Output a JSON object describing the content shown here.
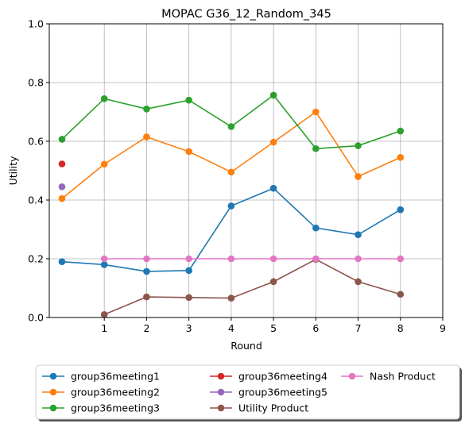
{
  "chart_data": {
    "type": "line",
    "title": "MOPAC G36_12_Random_345",
    "xlabel": "Round",
    "ylabel": "Utility",
    "xlim": [
      -0.3,
      9
    ],
    "ylim": [
      0,
      1.0
    ],
    "x_ticks": [
      1,
      2,
      3,
      4,
      5,
      6,
      7,
      8,
      9
    ],
    "y_ticks": [
      0.0,
      0.2,
      0.4,
      0.6,
      0.8,
      1.0
    ],
    "y_tick_labels": [
      "0.0",
      "0.2",
      "0.4",
      "0.6",
      "0.8",
      "1.0"
    ],
    "grid": true,
    "legend_position": "bottom",
    "legend_columns": 3,
    "series": [
      {
        "name": "group36meeting1",
        "color": "#1f77b4",
        "x": [
          0,
          1,
          2,
          3,
          4,
          5,
          6,
          7,
          8
        ],
        "y": [
          0.19,
          0.18,
          0.157,
          0.16,
          0.38,
          0.44,
          0.305,
          0.282,
          0.367
        ]
      },
      {
        "name": "group36meeting2",
        "color": "#ff7f0e",
        "x": [
          0,
          1,
          2,
          3,
          4,
          5,
          6,
          7,
          8
        ],
        "y": [
          0.405,
          0.522,
          0.615,
          0.565,
          0.495,
          0.597,
          0.7,
          0.48,
          0.545
        ]
      },
      {
        "name": "group36meeting3",
        "color": "#2ca02c",
        "x": [
          0,
          1,
          2,
          3,
          4,
          5,
          6,
          7,
          8
        ],
        "y": [
          0.607,
          0.745,
          0.71,
          0.74,
          0.65,
          0.757,
          0.575,
          0.585,
          0.635
        ]
      },
      {
        "name": "group36meeting4",
        "color": "#d62728",
        "x": [
          0
        ],
        "y": [
          0.523
        ]
      },
      {
        "name": "group36meeting5",
        "color": "#9467bd",
        "x": [
          0
        ],
        "y": [
          0.445
        ]
      },
      {
        "name": "Utility Product",
        "color": "#8c564b",
        "x": [
          1,
          2,
          3,
          4,
          5,
          6,
          7,
          8
        ],
        "y": [
          0.01,
          0.07,
          0.068,
          0.066,
          0.122,
          0.198,
          0.122,
          0.079
        ]
      },
      {
        "name": "Nash Product",
        "color": "#e377c2",
        "x": [
          1,
          2,
          3,
          4,
          5,
          6,
          7,
          8
        ],
        "y": [
          0.2,
          0.2,
          0.2,
          0.2,
          0.2,
          0.2,
          0.2,
          0.2
        ]
      }
    ]
  }
}
